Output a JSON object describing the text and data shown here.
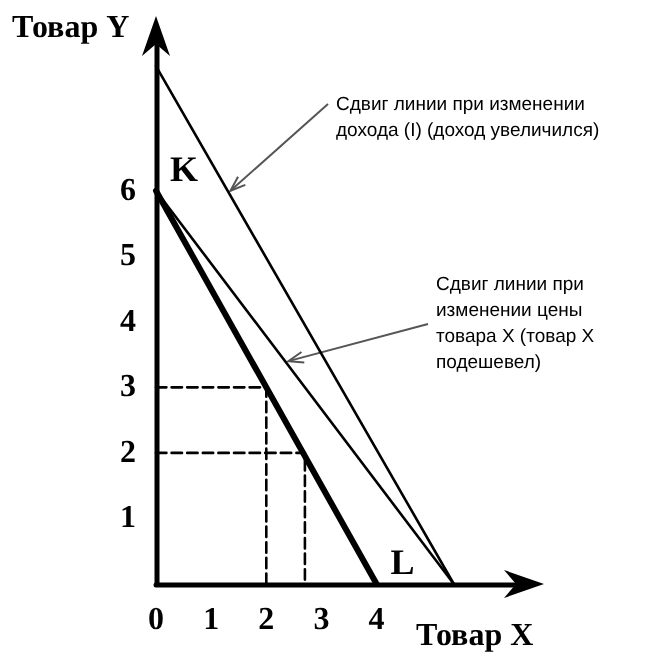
{
  "chart_data": {
    "type": "line",
    "xlabel": "Товар X",
    "ylabel": "Товар Y",
    "xlim": [
      0,
      6.6
    ],
    "ylim": [
      0,
      8.3
    ],
    "xticks": [
      0,
      1,
      2,
      3,
      4
    ],
    "yticks": [
      1,
      2,
      3,
      4,
      5,
      6
    ],
    "grid": false,
    "series": [
      {
        "color": "#000000",
        "x": [
          0,
          4
        ],
        "values": [
          6,
          0
        ]
      },
      {
        "color": "#000000",
        "x": [
          0,
          5.4
        ],
        "values": [
          6,
          0
        ]
      },
      {
        "color": "#000000",
        "x": [
          0,
          5.4
        ],
        "values": [
          7.9,
          0
        ]
      },
      {
        "color": "#000000",
        "x": [
          0,
          2,
          2
        ],
        "values": [
          3,
          3,
          0
        ],
        "line_style": "dashed"
      },
      {
        "color": "#000000",
        "x": [
          0,
          2.7,
          2.7
        ],
        "values": [
          2,
          2,
          0
        ],
        "line_style": "dashed"
      }
    ],
    "annotations": [
      {
        "text": "K",
        "x": 0,
        "y": 6
      },
      {
        "text": "L",
        "x": 4,
        "y": 0
      },
      {
        "text": "Сдвиг линии при изменении дохода (I) (доход увеличился)",
        "x": 1.35,
        "y": 6.0
      },
      {
        "text": "Сдвиг линии при изменении цены товара X (товар X подешевел)",
        "x": 2.4,
        "y": 3.4
      }
    ]
  }
}
